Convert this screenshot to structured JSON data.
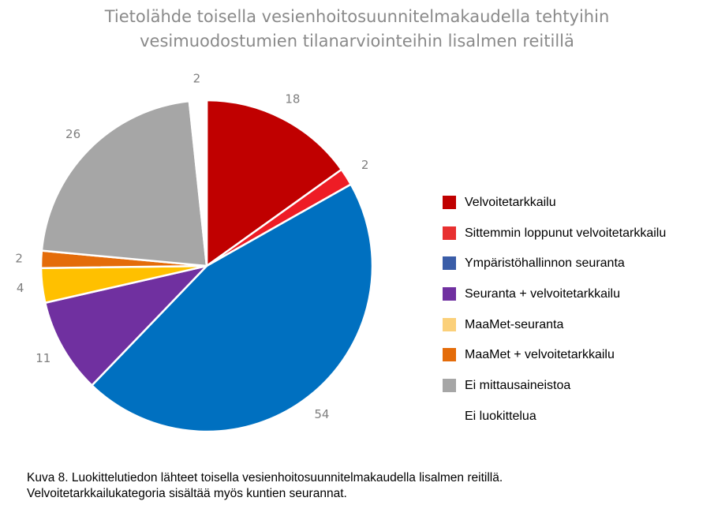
{
  "chart_data": {
    "type": "pie",
    "title_lines": [
      "Tietolähde toisella vesienhoitosuunnitelmakaudella tehtyihin",
      "vesimuodostumien tilanarviointeihin lisalmen reitillä"
    ],
    "start_angle_deg": 0,
    "direction": "clockwise",
    "slices": [
      {
        "label": "Velvoitetarkkailu",
        "value": 18,
        "color": "#c00000",
        "display": "18"
      },
      {
        "label": "Sittemmin loppunut velvoitetarkkailu",
        "value": 2,
        "color": "#ee1c25",
        "display": "2"
      },
      {
        "label": "Ympäristöhallinnon seuranta",
        "value": 54,
        "color": "#0070c0",
        "display": "54"
      },
      {
        "label": "Seuranta + velvoitetarkkailu",
        "value": 11,
        "color": "#7030a0",
        "display": "11"
      },
      {
        "label": "MaaMet-seuranta",
        "value": 4,
        "color": "#ffc000",
        "display": "4"
      },
      {
        "label": "MaaMet + velvoitetarkkailu",
        "value": 2,
        "color": "#e46c0a",
        "display": "2"
      },
      {
        "label": "Ei mittausaineistoa",
        "value": 26,
        "color": "#a6a6a6",
        "display": "26"
      },
      {
        "label": "Ei luokittelua",
        "value": 2,
        "color": "#ffffff",
        "display": "2"
      }
    ],
    "legend": {
      "position": "right",
      "entries": [
        {
          "label": "Velvoitetarkkailu",
          "color": "#c00000"
        },
        {
          "label": "Sittemmin loppunut velvoitetarkkailu",
          "color": "#e83030"
        },
        {
          "label": "Ympäristöhallinnon seuranta",
          "color": "#3a5da8"
        },
        {
          "label": "Seuranta + velvoitetarkkailu",
          "color": "#7030a0"
        },
        {
          "label": "MaaMet-seuranta",
          "color": "#fbd07a"
        },
        {
          "label": "MaaMet + velvoitetarkkailu",
          "color": "#e46c0a"
        },
        {
          "label": "Ei mittausaineistoa",
          "color": "#a6a6a6"
        },
        {
          "label": "Ei luokittelua",
          "color": "#ffffff"
        }
      ]
    }
  },
  "caption": {
    "line1": "Kuva 8. Luokittelutiedon lähteet toisella vesienhoitosuunnitelmakaudella lisalmen reitillä.",
    "line2": "Velvoitetarkkailukategoria sisältää myös kuntien seurannat."
  }
}
